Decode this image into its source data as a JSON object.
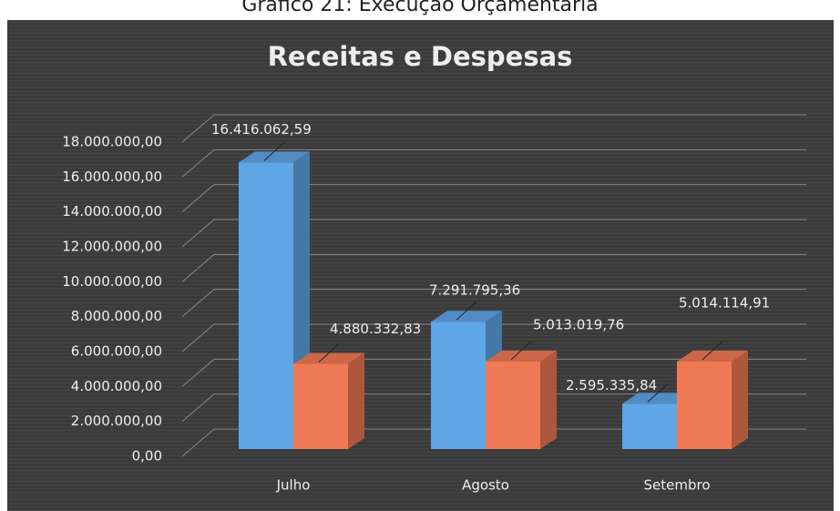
{
  "caption": "Gráfico 21: Execução Orçamentária",
  "chart_data": {
    "type": "bar3d",
    "title": "Receitas e Despesas",
    "categories": [
      "Julho",
      "Agosto",
      "Setembro"
    ],
    "series": [
      {
        "color": "#5fa6e6",
        "values": [
          16416062.59,
          7291795.36,
          2595335.84
        ],
        "value_labels": [
          "16.416.062,59",
          "7.291.795,36",
          "2.595.335,84"
        ]
      },
      {
        "color": "#f07a55",
        "values": [
          4880332.83,
          5013019.76,
          5014114.91
        ],
        "value_labels": [
          "4.880.332,83",
          "5.013.019,76",
          "5.014.114,91"
        ]
      }
    ],
    "ylim": [
      0,
      18000000
    ],
    "yticks": [
      {
        "value": 0,
        "label": "0,00"
      },
      {
        "value": 2000000,
        "label": "2.000.000,00"
      },
      {
        "value": 4000000,
        "label": "4.000.000,00"
      },
      {
        "value": 6000000,
        "label": "6.000.000,00"
      },
      {
        "value": 8000000,
        "label": "8.000.000,00"
      },
      {
        "value": 10000000,
        "label": "10.000.000,00"
      },
      {
        "value": 12000000,
        "label": "12.000.000,00"
      },
      {
        "value": 14000000,
        "label": "14.000.000,00"
      },
      {
        "value": 16000000,
        "label": "16.000.000,00"
      },
      {
        "value": 18000000,
        "label": "18.000.000,00"
      }
    ],
    "grid": true
  }
}
